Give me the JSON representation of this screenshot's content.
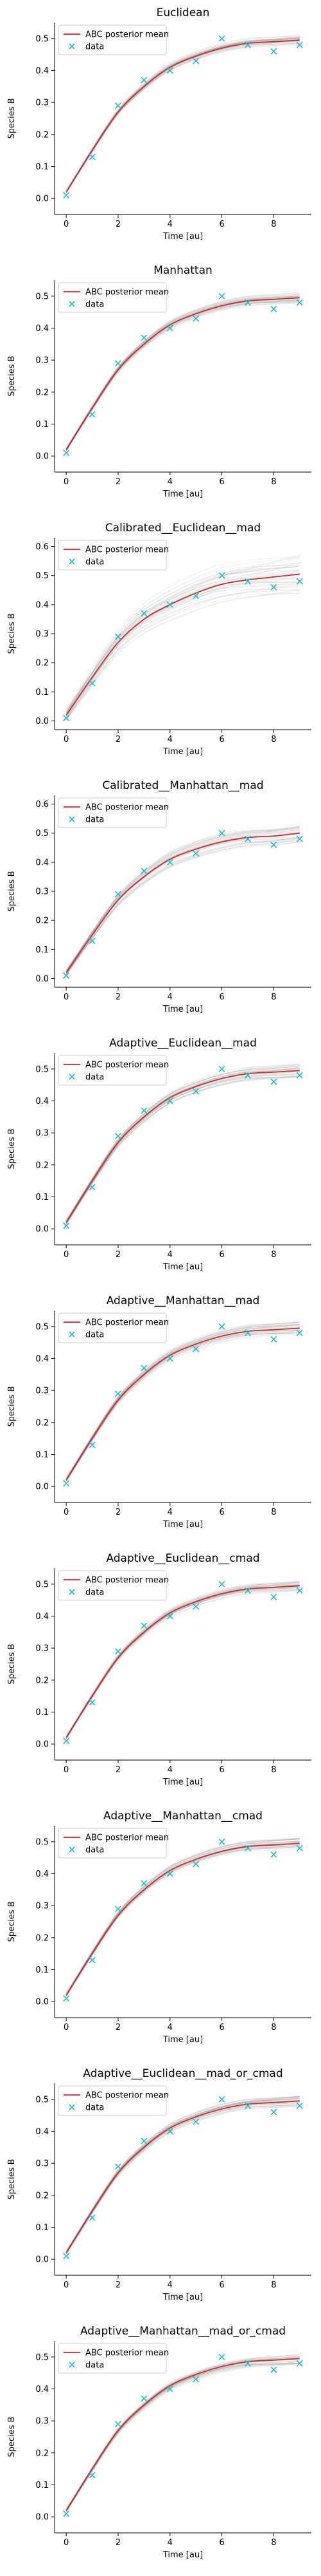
{
  "colors": {
    "mean": "#d62728",
    "data": "#17becf",
    "samples": "#7f7f7f",
    "axis": "#000000",
    "legend_border": "#cccccc"
  },
  "legend": {
    "mean_label": "ABC posterior mean",
    "data_label": "data"
  },
  "chart_data": [
    {
      "type": "line",
      "title": "Euclidean",
      "xlabel": "Time [au]",
      "ylabel": "Species B",
      "xlim": [
        -0.45,
        9.45
      ],
      "ylim": [
        -0.05,
        0.55
      ],
      "xticks": [
        0,
        2,
        4,
        6,
        8
      ],
      "yticks": [
        0.0,
        0.1,
        0.2,
        0.3,
        0.4,
        0.5
      ],
      "legend_position": "upper-left",
      "samples_spread": 0.012,
      "x": [
        0,
        1,
        2,
        3,
        4,
        5,
        6,
        7,
        8,
        9
      ],
      "series": [
        {
          "name": "ABC posterior mean",
          "values": [
            0.02,
            0.15,
            0.27,
            0.35,
            0.41,
            0.445,
            0.47,
            0.485,
            0.49,
            0.495
          ]
        },
        {
          "name": "data",
          "values": [
            0.01,
            0.13,
            0.29,
            0.37,
            0.4,
            0.43,
            0.5,
            0.48,
            0.46,
            0.48
          ]
        }
      ]
    },
    {
      "type": "line",
      "title": "Manhattan",
      "xlabel": "Time [au]",
      "ylabel": "Species B",
      "xlim": [
        -0.45,
        9.45
      ],
      "ylim": [
        -0.05,
        0.55
      ],
      "xticks": [
        0,
        2,
        4,
        6,
        8
      ],
      "yticks": [
        0.0,
        0.1,
        0.2,
        0.3,
        0.4,
        0.5
      ],
      "legend_position": "upper-left",
      "samples_spread": 0.012,
      "x": [
        0,
        1,
        2,
        3,
        4,
        5,
        6,
        7,
        8,
        9
      ],
      "series": [
        {
          "name": "ABC posterior mean",
          "values": [
            0.02,
            0.15,
            0.27,
            0.35,
            0.41,
            0.445,
            0.47,
            0.485,
            0.49,
            0.495
          ]
        },
        {
          "name": "data",
          "values": [
            0.01,
            0.13,
            0.29,
            0.37,
            0.4,
            0.43,
            0.5,
            0.48,
            0.46,
            0.48
          ]
        }
      ]
    },
    {
      "type": "line",
      "title": "Calibrated__Euclidean__mad",
      "xlabel": "Time [au]",
      "ylabel": "Species B",
      "xlim": [
        -0.45,
        9.45
      ],
      "ylim": [
        -0.03,
        0.63
      ],
      "xticks": [
        0,
        2,
        4,
        6,
        8
      ],
      "yticks": [
        0.0,
        0.1,
        0.2,
        0.3,
        0.4,
        0.5,
        0.6
      ],
      "legend_position": "upper-left",
      "samples_spread": 0.05,
      "x": [
        0,
        1,
        2,
        3,
        4,
        5,
        6,
        7,
        8,
        9
      ],
      "series": [
        {
          "name": "ABC posterior mean",
          "values": [
            0.02,
            0.15,
            0.27,
            0.35,
            0.4,
            0.44,
            0.47,
            0.485,
            0.495,
            0.505
          ]
        },
        {
          "name": "data",
          "values": [
            0.01,
            0.13,
            0.29,
            0.37,
            0.4,
            0.43,
            0.5,
            0.48,
            0.46,
            0.48
          ]
        }
      ]
    },
    {
      "type": "line",
      "title": "Calibrated__Manhattan__mad",
      "xlabel": "Time [au]",
      "ylabel": "Species B",
      "xlim": [
        -0.45,
        9.45
      ],
      "ylim": [
        -0.03,
        0.63
      ],
      "xticks": [
        0,
        2,
        4,
        6,
        8
      ],
      "yticks": [
        0.0,
        0.1,
        0.2,
        0.3,
        0.4,
        0.5,
        0.6
      ],
      "legend_position": "upper-left",
      "samples_spread": 0.025,
      "x": [
        0,
        1,
        2,
        3,
        4,
        5,
        6,
        7,
        8,
        9
      ],
      "series": [
        {
          "name": "ABC posterior mean",
          "values": [
            0.02,
            0.15,
            0.27,
            0.35,
            0.41,
            0.445,
            0.47,
            0.485,
            0.49,
            0.5
          ]
        },
        {
          "name": "data",
          "values": [
            0.01,
            0.13,
            0.29,
            0.37,
            0.4,
            0.43,
            0.5,
            0.48,
            0.46,
            0.48
          ]
        }
      ]
    },
    {
      "type": "line",
      "title": "Adaptive__Euclidean__mad",
      "xlabel": "Time [au]",
      "ylabel": "Species B",
      "xlim": [
        -0.45,
        9.45
      ],
      "ylim": [
        -0.05,
        0.55
      ],
      "xticks": [
        0,
        2,
        4,
        6,
        8
      ],
      "yticks": [
        0.0,
        0.1,
        0.2,
        0.3,
        0.4,
        0.5
      ],
      "legend_position": "upper-left",
      "samples_spread": 0.015,
      "x": [
        0,
        1,
        2,
        3,
        4,
        5,
        6,
        7,
        8,
        9
      ],
      "series": [
        {
          "name": "ABC posterior mean",
          "values": [
            0.02,
            0.15,
            0.27,
            0.35,
            0.41,
            0.445,
            0.47,
            0.485,
            0.49,
            0.495
          ]
        },
        {
          "name": "data",
          "values": [
            0.01,
            0.13,
            0.29,
            0.37,
            0.4,
            0.43,
            0.5,
            0.48,
            0.46,
            0.48
          ]
        }
      ]
    },
    {
      "type": "line",
      "title": "Adaptive__Manhattan__mad",
      "xlabel": "Time [au]",
      "ylabel": "Species B",
      "xlim": [
        -0.45,
        9.45
      ],
      "ylim": [
        -0.05,
        0.55
      ],
      "xticks": [
        0,
        2,
        4,
        6,
        8
      ],
      "yticks": [
        0.0,
        0.1,
        0.2,
        0.3,
        0.4,
        0.5
      ],
      "legend_position": "upper-left",
      "samples_spread": 0.015,
      "x": [
        0,
        1,
        2,
        3,
        4,
        5,
        6,
        7,
        8,
        9
      ],
      "series": [
        {
          "name": "ABC posterior mean",
          "values": [
            0.02,
            0.15,
            0.27,
            0.35,
            0.41,
            0.445,
            0.47,
            0.485,
            0.49,
            0.495
          ]
        },
        {
          "name": "data",
          "values": [
            0.01,
            0.13,
            0.29,
            0.37,
            0.4,
            0.43,
            0.5,
            0.48,
            0.46,
            0.48
          ]
        }
      ]
    },
    {
      "type": "line",
      "title": "Adaptive__Euclidean__cmad",
      "xlabel": "Time [au]",
      "ylabel": "Species B",
      "xlim": [
        -0.45,
        9.45
      ],
      "ylim": [
        -0.05,
        0.55
      ],
      "xticks": [
        0,
        2,
        4,
        6,
        8
      ],
      "yticks": [
        0.0,
        0.1,
        0.2,
        0.3,
        0.4,
        0.5
      ],
      "legend_position": "upper-left",
      "samples_spread": 0.012,
      "x": [
        0,
        1,
        2,
        3,
        4,
        5,
        6,
        7,
        8,
        9
      ],
      "series": [
        {
          "name": "ABC posterior mean",
          "values": [
            0.02,
            0.15,
            0.27,
            0.35,
            0.41,
            0.445,
            0.47,
            0.485,
            0.49,
            0.495
          ]
        },
        {
          "name": "data",
          "values": [
            0.01,
            0.13,
            0.29,
            0.37,
            0.4,
            0.43,
            0.5,
            0.48,
            0.46,
            0.48
          ]
        }
      ]
    },
    {
      "type": "line",
      "title": "Adaptive__Manhattan__cmad",
      "xlabel": "Time [au]",
      "ylabel": "Species B",
      "xlim": [
        -0.45,
        9.45
      ],
      "ylim": [
        -0.05,
        0.55
      ],
      "xticks": [
        0,
        2,
        4,
        6,
        8
      ],
      "yticks": [
        0.0,
        0.1,
        0.2,
        0.3,
        0.4,
        0.5
      ],
      "legend_position": "upper-left",
      "samples_spread": 0.012,
      "x": [
        0,
        1,
        2,
        3,
        4,
        5,
        6,
        7,
        8,
        9
      ],
      "series": [
        {
          "name": "ABC posterior mean",
          "values": [
            0.02,
            0.15,
            0.27,
            0.35,
            0.41,
            0.445,
            0.47,
            0.485,
            0.49,
            0.495
          ]
        },
        {
          "name": "data",
          "values": [
            0.01,
            0.13,
            0.29,
            0.37,
            0.4,
            0.43,
            0.5,
            0.48,
            0.46,
            0.48
          ]
        }
      ]
    },
    {
      "type": "line",
      "title": "Adaptive__Euclidean__mad_or_cmad",
      "xlabel": "Time [au]",
      "ylabel": "Species B",
      "xlim": [
        -0.45,
        9.45
      ],
      "ylim": [
        -0.05,
        0.55
      ],
      "xticks": [
        0,
        2,
        4,
        6,
        8
      ],
      "yticks": [
        0.0,
        0.1,
        0.2,
        0.3,
        0.4,
        0.5
      ],
      "legend_position": "upper-left",
      "samples_spread": 0.012,
      "x": [
        0,
        1,
        2,
        3,
        4,
        5,
        6,
        7,
        8,
        9
      ],
      "series": [
        {
          "name": "ABC posterior mean",
          "values": [
            0.02,
            0.15,
            0.27,
            0.35,
            0.41,
            0.445,
            0.47,
            0.485,
            0.49,
            0.495
          ]
        },
        {
          "name": "data",
          "values": [
            0.01,
            0.13,
            0.29,
            0.37,
            0.4,
            0.43,
            0.5,
            0.48,
            0.46,
            0.48
          ]
        }
      ]
    },
    {
      "type": "line",
      "title": "Adaptive__Manhattan__mad_or_cmad",
      "xlabel": "Time [au]",
      "ylabel": "Species B",
      "xlim": [
        -0.45,
        9.45
      ],
      "ylim": [
        -0.05,
        0.55
      ],
      "xticks": [
        0,
        2,
        4,
        6,
        8
      ],
      "yticks": [
        0.0,
        0.1,
        0.2,
        0.3,
        0.4,
        0.5
      ],
      "legend_position": "upper-left",
      "samples_spread": 0.012,
      "x": [
        0,
        1,
        2,
        3,
        4,
        5,
        6,
        7,
        8,
        9
      ],
      "series": [
        {
          "name": "ABC posterior mean",
          "values": [
            0.02,
            0.15,
            0.27,
            0.35,
            0.41,
            0.445,
            0.47,
            0.485,
            0.49,
            0.495
          ]
        },
        {
          "name": "data",
          "values": [
            0.01,
            0.13,
            0.29,
            0.37,
            0.4,
            0.43,
            0.5,
            0.48,
            0.46,
            0.48
          ]
        }
      ]
    }
  ]
}
